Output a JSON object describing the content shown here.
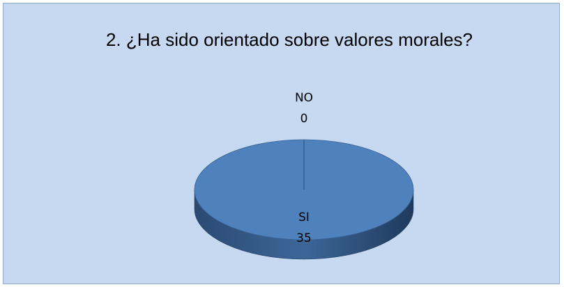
{
  "chart_data": {
    "type": "pie",
    "title": "2. ¿Ha sido orientado sobre valores morales?",
    "categories": [
      "SI",
      "NO"
    ],
    "values": [
      35,
      0
    ],
    "colors": [
      "#4f81bd",
      "#4f81bd"
    ]
  }
}
